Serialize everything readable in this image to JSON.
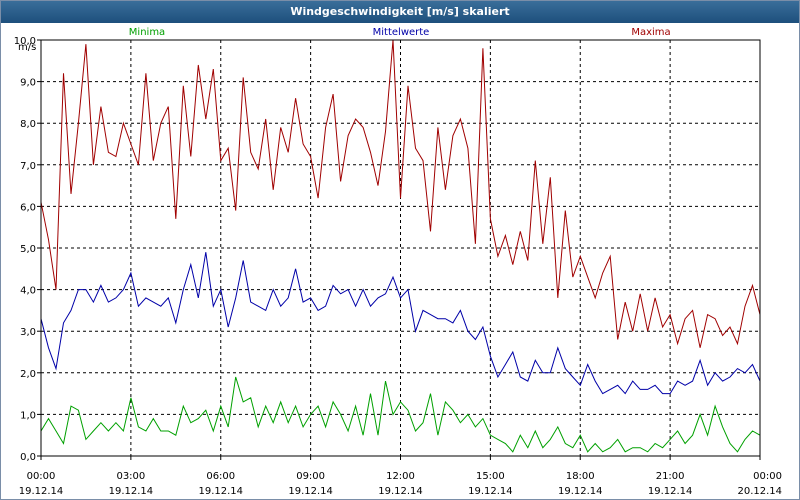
{
  "chart_data": {
    "type": "line",
    "title": "Windgeschwindigkeit [m/s] skaliert",
    "ylabel": "m/s",
    "ylim": [
      0,
      10
    ],
    "grid": true,
    "yticks": [
      "0,0",
      "1,0",
      "2,0",
      "3,0",
      "4,0",
      "5,0",
      "6,0",
      "7,0",
      "8,0",
      "9,0",
      "10,0"
    ],
    "xticks": [
      {
        "time": "00:00",
        "date": "19.12.14"
      },
      {
        "time": "03:00",
        "date": "19.12.14"
      },
      {
        "time": "06:00",
        "date": "19.12.14"
      },
      {
        "time": "09:00",
        "date": "19.12.14"
      },
      {
        "time": "12:00",
        "date": "19.12.14"
      },
      {
        "time": "15:00",
        "date": "19.12.14"
      },
      {
        "time": "18:00",
        "date": "19.12.14"
      },
      {
        "time": "21:00",
        "date": "19.12.14"
      },
      {
        "time": "00:00",
        "date": "20.12.14"
      }
    ],
    "x_unit": "hours since 19.12.14 00:00",
    "series": [
      {
        "name": "Minima",
        "color": "#00a000",
        "points": [
          [
            0,
            0.6
          ],
          [
            0.25,
            0.9
          ],
          [
            0.5,
            0.6
          ],
          [
            0.75,
            0.3
          ],
          [
            1,
            1.2
          ],
          [
            1.25,
            1.1
          ],
          [
            1.5,
            0.4
          ],
          [
            1.75,
            0.6
          ],
          [
            2,
            0.8
          ],
          [
            2.25,
            0.6
          ],
          [
            2.5,
            0.8
          ],
          [
            2.75,
            0.6
          ],
          [
            3,
            1.4
          ],
          [
            3.25,
            0.7
          ],
          [
            3.5,
            0.6
          ],
          [
            3.75,
            0.9
          ],
          [
            4,
            0.6
          ],
          [
            4.25,
            0.6
          ],
          [
            4.5,
            0.5
          ],
          [
            4.75,
            1.2
          ],
          [
            5,
            0.8
          ],
          [
            5.25,
            0.9
          ],
          [
            5.5,
            1.1
          ],
          [
            5.75,
            0.6
          ],
          [
            6,
            1.2
          ],
          [
            6.25,
            0.7
          ],
          [
            6.5,
            1.9
          ],
          [
            6.75,
            1.3
          ],
          [
            7,
            1.4
          ],
          [
            7.25,
            0.7
          ],
          [
            7.5,
            1.2
          ],
          [
            7.75,
            0.8
          ],
          [
            8,
            1.3
          ],
          [
            8.25,
            0.8
          ],
          [
            8.5,
            1.2
          ],
          [
            8.75,
            0.7
          ],
          [
            9,
            1.0
          ],
          [
            9.25,
            1.2
          ],
          [
            9.5,
            0.7
          ],
          [
            9.75,
            1.3
          ],
          [
            10,
            1.0
          ],
          [
            10.25,
            0.6
          ],
          [
            10.5,
            1.2
          ],
          [
            10.75,
            0.5
          ],
          [
            11,
            1.5
          ],
          [
            11.25,
            0.5
          ],
          [
            11.5,
            1.8
          ],
          [
            11.75,
            1.0
          ],
          [
            12,
            1.3
          ],
          [
            12.25,
            1.1
          ],
          [
            12.5,
            0.6
          ],
          [
            12.75,
            0.8
          ],
          [
            13,
            1.5
          ],
          [
            13.25,
            0.5
          ],
          [
            13.5,
            1.3
          ],
          [
            13.75,
            1.1
          ],
          [
            14,
            0.8
          ],
          [
            14.25,
            1.0
          ],
          [
            14.5,
            0.7
          ],
          [
            14.75,
            0.9
          ],
          [
            15,
            0.5
          ],
          [
            15.25,
            0.4
          ],
          [
            15.5,
            0.3
          ],
          [
            15.75,
            0.1
          ],
          [
            16,
            0.5
          ],
          [
            16.25,
            0.2
          ],
          [
            16.5,
            0.6
          ],
          [
            16.75,
            0.2
          ],
          [
            17,
            0.4
          ],
          [
            17.25,
            0.7
          ],
          [
            17.5,
            0.3
          ],
          [
            17.75,
            0.2
          ],
          [
            18,
            0.5
          ],
          [
            18.25,
            0.1
          ],
          [
            18.5,
            0.3
          ],
          [
            18.75,
            0.1
          ],
          [
            19,
            0.2
          ],
          [
            19.25,
            0.4
          ],
          [
            19.5,
            0.1
          ],
          [
            19.75,
            0.2
          ],
          [
            20,
            0.2
          ],
          [
            20.25,
            0.1
          ],
          [
            20.5,
            0.3
          ],
          [
            20.75,
            0.2
          ],
          [
            21,
            0.4
          ],
          [
            21.25,
            0.6
          ],
          [
            21.5,
            0.3
          ],
          [
            21.75,
            0.5
          ],
          [
            22,
            1.0
          ],
          [
            22.25,
            0.5
          ],
          [
            22.5,
            1.2
          ],
          [
            22.75,
            0.7
          ],
          [
            23,
            0.3
          ],
          [
            23.25,
            0.1
          ],
          [
            23.5,
            0.4
          ],
          [
            23.75,
            0.6
          ],
          [
            24,
            0.5
          ]
        ]
      },
      {
        "name": "Mittelwerte",
        "color": "#0000a8",
        "points": [
          [
            0,
            3.3
          ],
          [
            0.25,
            2.6
          ],
          [
            0.5,
            2.1
          ],
          [
            0.75,
            3.2
          ],
          [
            1,
            3.5
          ],
          [
            1.25,
            4.0
          ],
          [
            1.5,
            4.0
          ],
          [
            1.75,
            3.7
          ],
          [
            2,
            4.1
          ],
          [
            2.25,
            3.7
          ],
          [
            2.5,
            3.8
          ],
          [
            2.75,
            4.0
          ],
          [
            3,
            4.4
          ],
          [
            3.25,
            3.6
          ],
          [
            3.5,
            3.8
          ],
          [
            3.75,
            3.7
          ],
          [
            4,
            3.6
          ],
          [
            4.25,
            3.8
          ],
          [
            4.5,
            3.2
          ],
          [
            4.75,
            4.0
          ],
          [
            5,
            4.6
          ],
          [
            5.25,
            3.8
          ],
          [
            5.5,
            4.9
          ],
          [
            5.75,
            3.6
          ],
          [
            6,
            4.0
          ],
          [
            6.25,
            3.1
          ],
          [
            6.5,
            3.8
          ],
          [
            6.75,
            4.7
          ],
          [
            7,
            3.7
          ],
          [
            7.25,
            3.6
          ],
          [
            7.5,
            3.5
          ],
          [
            7.75,
            4.0
          ],
          [
            8,
            3.6
          ],
          [
            8.25,
            3.8
          ],
          [
            8.5,
            4.5
          ],
          [
            8.75,
            3.7
          ],
          [
            9,
            3.8
          ],
          [
            9.25,
            3.5
          ],
          [
            9.5,
            3.6
          ],
          [
            9.75,
            4.1
          ],
          [
            10,
            3.9
          ],
          [
            10.25,
            4.0
          ],
          [
            10.5,
            3.6
          ],
          [
            10.75,
            4.0
          ],
          [
            11,
            3.6
          ],
          [
            11.25,
            3.8
          ],
          [
            11.5,
            3.9
          ],
          [
            11.75,
            4.3
          ],
          [
            12,
            3.8
          ],
          [
            12.25,
            4.0
          ],
          [
            12.5,
            3.0
          ],
          [
            12.75,
            3.5
          ],
          [
            13,
            3.4
          ],
          [
            13.25,
            3.3
          ],
          [
            13.5,
            3.3
          ],
          [
            13.75,
            3.2
          ],
          [
            14,
            3.5
          ],
          [
            14.25,
            3.0
          ],
          [
            14.5,
            2.8
          ],
          [
            14.75,
            3.1
          ],
          [
            15,
            2.4
          ],
          [
            15.25,
            1.9
          ],
          [
            15.5,
            2.2
          ],
          [
            15.75,
            2.5
          ],
          [
            16,
            1.9
          ],
          [
            16.25,
            1.8
          ],
          [
            16.5,
            2.3
          ],
          [
            16.75,
            2.0
          ],
          [
            17,
            2.0
          ],
          [
            17.25,
            2.6
          ],
          [
            17.5,
            2.1
          ],
          [
            17.75,
            1.9
          ],
          [
            18,
            1.7
          ],
          [
            18.25,
            2.2
          ],
          [
            18.5,
            1.8
          ],
          [
            18.75,
            1.5
          ],
          [
            19,
            1.6
          ],
          [
            19.25,
            1.7
          ],
          [
            19.5,
            1.5
          ],
          [
            19.75,
            1.8
          ],
          [
            20,
            1.6
          ],
          [
            20.25,
            1.6
          ],
          [
            20.5,
            1.7
          ],
          [
            20.75,
            1.5
          ],
          [
            21,
            1.5
          ],
          [
            21.25,
            1.8
          ],
          [
            21.5,
            1.7
          ],
          [
            21.75,
            1.8
          ],
          [
            22,
            2.3
          ],
          [
            22.25,
            1.7
          ],
          [
            22.5,
            2.0
          ],
          [
            22.75,
            1.8
          ],
          [
            23,
            1.9
          ],
          [
            23.25,
            2.1
          ],
          [
            23.5,
            2.0
          ],
          [
            23.75,
            2.2
          ],
          [
            24,
            1.8
          ]
        ]
      },
      {
        "name": "Maxima",
        "color": "#a00000",
        "points": [
          [
            0,
            6.1
          ],
          [
            0.25,
            5.2
          ],
          [
            0.5,
            4.0
          ],
          [
            0.75,
            9.2
          ],
          [
            1,
            6.3
          ],
          [
            1.25,
            8.0
          ],
          [
            1.5,
            9.9
          ],
          [
            1.75,
            7.0
          ],
          [
            2,
            8.4
          ],
          [
            2.25,
            7.3
          ],
          [
            2.5,
            7.2
          ],
          [
            2.75,
            8.0
          ],
          [
            3,
            7.5
          ],
          [
            3.25,
            7.0
          ],
          [
            3.5,
            9.2
          ],
          [
            3.75,
            7.1
          ],
          [
            4,
            8.0
          ],
          [
            4.25,
            8.4
          ],
          [
            4.5,
            5.7
          ],
          [
            4.75,
            8.9
          ],
          [
            5,
            7.2
          ],
          [
            5.25,
            9.4
          ],
          [
            5.5,
            8.1
          ],
          [
            5.75,
            9.3
          ],
          [
            6,
            7.1
          ],
          [
            6.25,
            7.4
          ],
          [
            6.5,
            5.9
          ],
          [
            6.75,
            9.1
          ],
          [
            7,
            7.3
          ],
          [
            7.25,
            6.9
          ],
          [
            7.5,
            8.1
          ],
          [
            7.75,
            6.4
          ],
          [
            8,
            7.9
          ],
          [
            8.25,
            7.3
          ],
          [
            8.5,
            8.6
          ],
          [
            8.75,
            7.5
          ],
          [
            9,
            7.2
          ],
          [
            9.25,
            6.2
          ],
          [
            9.5,
            7.9
          ],
          [
            9.75,
            8.7
          ],
          [
            10,
            6.6
          ],
          [
            10.25,
            7.7
          ],
          [
            10.5,
            8.1
          ],
          [
            10.75,
            7.9
          ],
          [
            11,
            7.3
          ],
          [
            11.25,
            6.5
          ],
          [
            11.5,
            7.8
          ],
          [
            11.75,
            10.0
          ],
          [
            12,
            6.2
          ],
          [
            12.25,
            8.9
          ],
          [
            12.5,
            7.4
          ],
          [
            12.75,
            7.1
          ],
          [
            13,
            5.4
          ],
          [
            13.25,
            7.9
          ],
          [
            13.5,
            6.4
          ],
          [
            13.75,
            7.7
          ],
          [
            14,
            8.1
          ],
          [
            14.25,
            7.4
          ],
          [
            14.5,
            5.1
          ],
          [
            14.75,
            9.8
          ],
          [
            15,
            5.7
          ],
          [
            15.25,
            4.8
          ],
          [
            15.5,
            5.3
          ],
          [
            15.75,
            4.6
          ],
          [
            16,
            5.4
          ],
          [
            16.25,
            4.7
          ],
          [
            16.5,
            7.1
          ],
          [
            16.75,
            5.1
          ],
          [
            17,
            6.7
          ],
          [
            17.25,
            3.8
          ],
          [
            17.5,
            5.9
          ],
          [
            17.75,
            4.3
          ],
          [
            18,
            4.8
          ],
          [
            18.25,
            4.3
          ],
          [
            18.5,
            3.8
          ],
          [
            18.75,
            4.4
          ],
          [
            19,
            4.8
          ],
          [
            19.25,
            2.8
          ],
          [
            19.5,
            3.7
          ],
          [
            19.75,
            3.0
          ],
          [
            20,
            3.9
          ],
          [
            20.25,
            3.0
          ],
          [
            20.5,
            3.8
          ],
          [
            20.75,
            3.1
          ],
          [
            21,
            3.4
          ],
          [
            21.25,
            2.7
          ],
          [
            21.5,
            3.3
          ],
          [
            21.75,
            3.5
          ],
          [
            22,
            2.6
          ],
          [
            22.25,
            3.4
          ],
          [
            22.5,
            3.3
          ],
          [
            22.75,
            2.9
          ],
          [
            23,
            3.1
          ],
          [
            23.25,
            2.7
          ],
          [
            23.5,
            3.6
          ],
          [
            23.75,
            4.1
          ],
          [
            24,
            3.4
          ]
        ]
      }
    ]
  }
}
